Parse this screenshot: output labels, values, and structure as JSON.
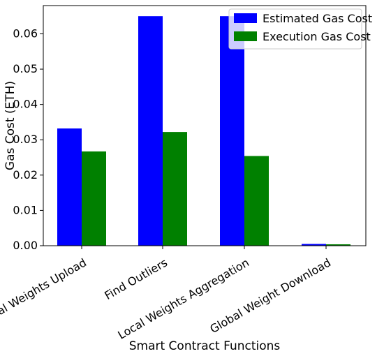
{
  "chart_data": {
    "type": "bar",
    "title": "",
    "xlabel": "Smart Contract Functions",
    "ylabel": "Gas Cost (ETH)",
    "categories": [
      "Local Weights Upload",
      "Find Outliers",
      "Local Weights Aggregation",
      "Global Weight Download"
    ],
    "series": [
      {
        "name": "Estimated Gas Cost",
        "color": "#0000ff",
        "values": [
          0.0332,
          0.065,
          0.065,
          0.0005
        ]
      },
      {
        "name": "Execution Gas Cost",
        "color": "#008000",
        "values": [
          0.0267,
          0.0322,
          0.0254,
          0.0004
        ]
      }
    ],
    "ylim": [
      0,
      0.068
    ],
    "yticks": [
      "0.00",
      "0.01",
      "0.02",
      "0.03",
      "0.04",
      "0.05",
      "0.06"
    ],
    "legend_position": "top-right",
    "grid": false
  }
}
